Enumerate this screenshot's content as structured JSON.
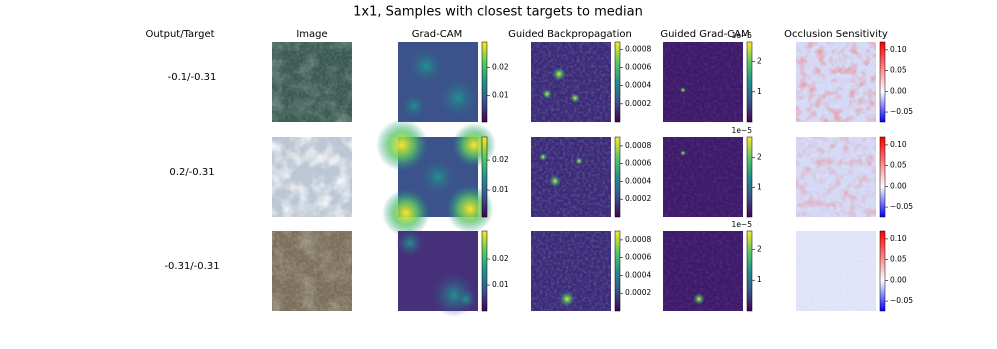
{
  "title": "1x1, Samples with closest targets to median",
  "columns": [
    "Output/Target",
    "Image",
    "Grad-CAM",
    "Guided Backpropagation",
    "Guided Grad-CAM",
    "Occlusion Sensitivity"
  ],
  "rows": [
    {
      "label": "-0.1/-0.31",
      "colorbars": [
        {
          "lim": [
            0.0007,
            0.029
          ],
          "ticks": [
            0.01,
            0.02
          ]
        },
        {
          "lim": [
            0.0,
            0.00088
          ],
          "ticks": [
            0.0002,
            0.0004,
            0.0006,
            0.0008
          ]
        },
        {
          "lim": [
            0,
            2.65
          ],
          "ticks": [
            1,
            2
          ],
          "offset": "1e−5"
        },
        {
          "lim": [
            -0.074,
            0.119
          ],
          "ticks": [
            {
              "value": -0.05,
              "label": "−0.05"
            },
            {
              "value": 0,
              "label": "0.00"
            },
            0.05,
            {
              "value": 0.1,
              "label": "0.10"
            }
          ]
        }
      ]
    },
    {
      "label": "0.2/-0.31",
      "colorbars": [
        {
          "lim": [
            0.001,
            0.0277
          ],
          "ticks": [
            0.01,
            0.02
          ]
        },
        {
          "lim": [
            0.0,
            0.0009
          ],
          "ticks": [
            0.0002,
            0.0004,
            0.0006,
            0.0008
          ]
        },
        {
          "lim": [
            0,
            2.7
          ],
          "ticks": [
            1,
            2
          ],
          "offset": "1e−5"
        },
        {
          "lim": [
            -0.074,
            0.119
          ],
          "ticks": [
            {
              "value": -0.05,
              "label": "−0.05"
            },
            {
              "value": 0,
              "label": "0.00"
            },
            0.05,
            {
              "value": 0.1,
              "label": "0.10"
            }
          ]
        }
      ]
    },
    {
      "label": "-0.31/-0.31",
      "colorbars": [
        {
          "lim": [
            0.0,
            0.0308
          ],
          "ticks": [
            0.01,
            0.02
          ]
        },
        {
          "lim": [
            0.0,
            0.0009
          ],
          "ticks": [
            0.0002,
            0.0004,
            0.0006,
            0.0008
          ]
        },
        {
          "lim": [
            0,
            2.6
          ],
          "ticks": [
            1,
            2
          ],
          "offset": "1e−5"
        },
        {
          "lim": [
            -0.074,
            0.119
          ],
          "ticks": [
            {
              "value": -0.05,
              "label": "−0.05"
            },
            {
              "value": 0,
              "label": "0.00"
            },
            0.05,
            {
              "value": 0.1,
              "label": "0.10"
            }
          ]
        }
      ]
    }
  ]
}
